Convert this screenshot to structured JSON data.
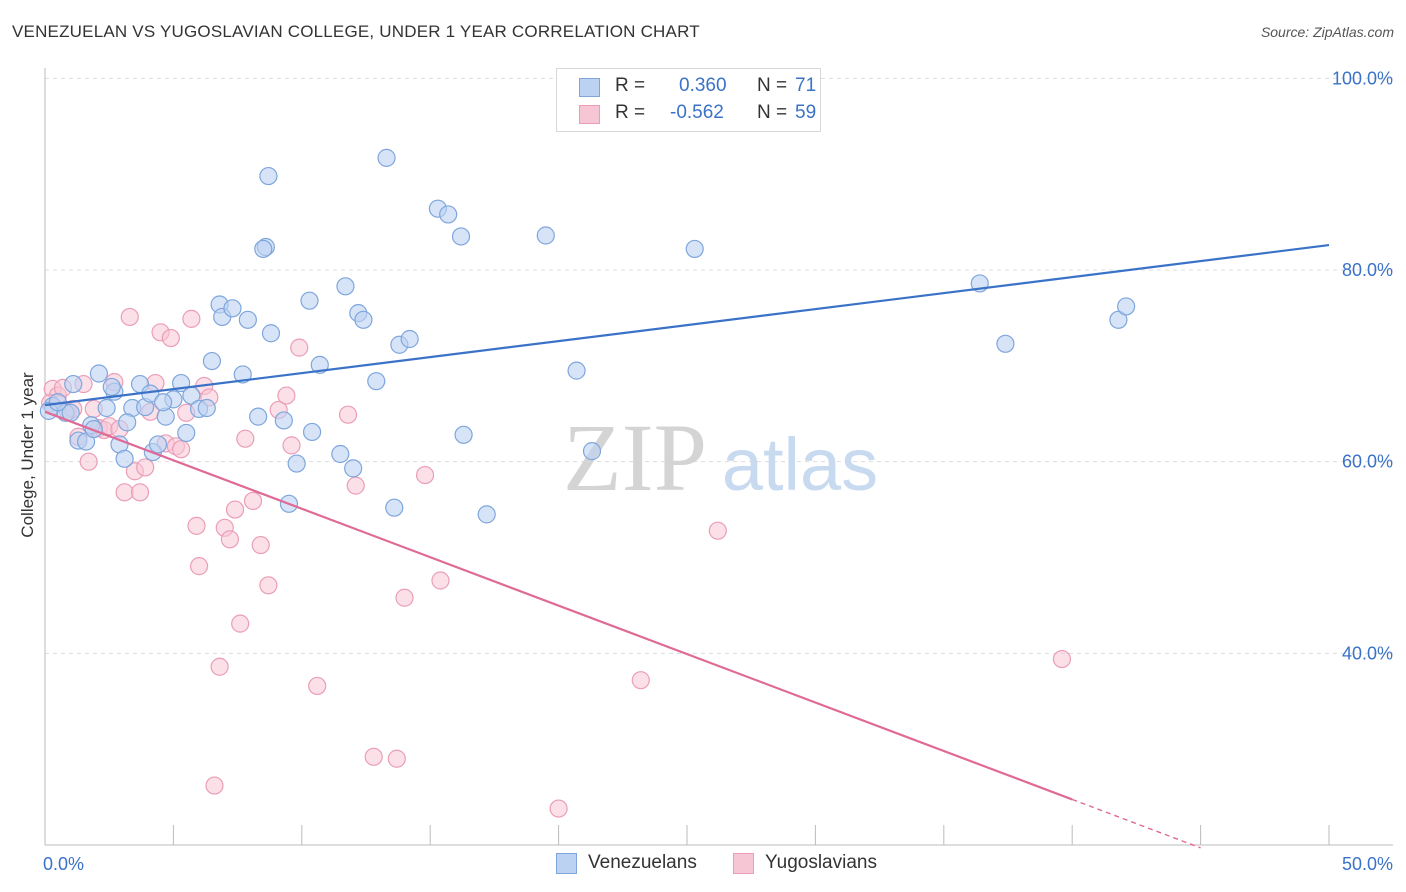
{
  "header": {
    "title": "VENEZUELAN VS YUGOSLAVIAN COLLEGE, UNDER 1 YEAR CORRELATION CHART",
    "source": "Source: ZipAtlas.com"
  },
  "legend": {
    "rows": [
      {
        "r_label": "R =",
        "r_value": "0.360",
        "n_label": "N =",
        "n_value": "71"
      },
      {
        "r_label": "R =",
        "r_value": "-0.562",
        "n_label": "N =",
        "n_value": "59"
      }
    ]
  },
  "watermark": {
    "zip": "ZIP",
    "atlas": "atlas"
  },
  "colors": {
    "blue": "#3a72c8",
    "blue_fill": "#bcd2f2",
    "blue_stroke": "#7ea6dc",
    "pink": "#e06a96",
    "pink_fill": "#f7c6d5",
    "pink_stroke": "#eb9db7",
    "grid": "#dddddd",
    "axis_label": "#3a72c8"
  },
  "chart_data": {
    "type": "scatter",
    "title": "VENEZUELAN VS YUGOSLAVIAN COLLEGE, UNDER 1 YEAR CORRELATION CHART",
    "xlabel": "",
    "ylabel": "College, Under 1 year",
    "xlim": [
      0,
      50
    ],
    "ylim": [
      20,
      104
    ],
    "x_tick_labels": [
      "0.0%",
      "50.0%"
    ],
    "y_ticks": [
      40,
      60,
      80,
      100
    ],
    "y_tick_labels": [
      "40.0%",
      "60.0%",
      "80.0%",
      "100.0%"
    ],
    "grid": true,
    "series": [
      {
        "name": "Venezuelans",
        "color": "#3a72c8",
        "R": 0.36,
        "N": 71,
        "trend": {
          "x": [
            0,
            50
          ],
          "y": [
            65.9,
            82.6
          ],
          "dash_from": null
        },
        "points": [
          [
            0.3,
            65.8
          ],
          [
            0.8,
            65.1
          ],
          [
            1.0,
            65.1
          ],
          [
            1.1,
            68.1
          ],
          [
            1.3,
            62.2
          ],
          [
            1.6,
            62.1
          ],
          [
            1.8,
            63.8
          ],
          [
            2.1,
            69.2
          ],
          [
            2.4,
            65.6
          ],
          [
            2.7,
            67.3
          ],
          [
            2.9,
            61.8
          ],
          [
            3.1,
            60.3
          ],
          [
            3.4,
            65.6
          ],
          [
            3.7,
            68.1
          ],
          [
            3.9,
            65.7
          ],
          [
            4.1,
            67.1
          ],
          [
            4.2,
            61.0
          ],
          [
            4.4,
            61.8
          ],
          [
            4.7,
            64.7
          ],
          [
            5.0,
            66.5
          ],
          [
            5.3,
            68.2
          ],
          [
            5.5,
            63.0
          ],
          [
            5.7,
            66.9
          ],
          [
            6.0,
            65.5
          ],
          [
            6.3,
            65.6
          ],
          [
            6.5,
            70.5
          ],
          [
            6.8,
            76.4
          ],
          [
            6.9,
            75.1
          ],
          [
            7.3,
            76.0
          ],
          [
            7.7,
            69.1
          ],
          [
            7.9,
            74.8
          ],
          [
            8.3,
            64.7
          ],
          [
            8.6,
            82.4
          ],
          [
            8.7,
            89.8
          ],
          [
            8.5,
            82.2
          ],
          [
            8.8,
            73.4
          ],
          [
            9.3,
            64.3
          ],
          [
            9.5,
            55.6
          ],
          [
            9.8,
            59.8
          ],
          [
            10.3,
            76.8
          ],
          [
            10.4,
            63.1
          ],
          [
            10.7,
            70.1
          ],
          [
            11.5,
            60.8
          ],
          [
            11.7,
            78.3
          ],
          [
            12.0,
            59.3
          ],
          [
            12.2,
            75.5
          ],
          [
            12.4,
            74.8
          ],
          [
            12.9,
            68.4
          ],
          [
            13.3,
            91.7
          ],
          [
            13.6,
            55.2
          ],
          [
            13.8,
            72.2
          ],
          [
            14.2,
            72.8
          ],
          [
            15.3,
            86.4
          ],
          [
            15.7,
            85.8
          ],
          [
            16.2,
            83.5
          ],
          [
            16.3,
            62.8
          ],
          [
            17.2,
            54.5
          ],
          [
            19.5,
            83.6
          ],
          [
            20.7,
            69.5
          ],
          [
            21.3,
            61.1
          ],
          [
            25.3,
            82.2
          ],
          [
            36.4,
            78.6
          ],
          [
            37.4,
            72.3
          ],
          [
            41.8,
            74.8
          ],
          [
            42.1,
            76.2
          ],
          [
            0.15,
            65.3
          ],
          [
            0.5,
            66.2
          ],
          [
            1.9,
            63.4
          ],
          [
            2.6,
            67.8
          ],
          [
            3.2,
            64.1
          ],
          [
            4.6,
            66.2
          ]
        ]
      },
      {
        "name": "Yugoslavians",
        "color": "#e06a96",
        "R": -0.562,
        "N": 59,
        "trend": {
          "x": [
            0,
            45
          ],
          "y": [
            65.2,
            19.7
          ],
          "dash_from": 40
        },
        "points": [
          [
            0.3,
            67.6
          ],
          [
            0.5,
            66.9
          ],
          [
            0.7,
            67.7
          ],
          [
            0.9,
            65.2
          ],
          [
            1.1,
            65.5
          ],
          [
            1.3,
            62.6
          ],
          [
            1.5,
            68.1
          ],
          [
            1.7,
            60.0
          ],
          [
            1.9,
            65.5
          ],
          [
            2.1,
            63.5
          ],
          [
            2.3,
            63.3
          ],
          [
            2.5,
            63.7
          ],
          [
            2.7,
            68.3
          ],
          [
            2.9,
            63.4
          ],
          [
            3.1,
            56.8
          ],
          [
            3.3,
            75.1
          ],
          [
            3.5,
            59.0
          ],
          [
            3.7,
            56.8
          ],
          [
            3.9,
            59.4
          ],
          [
            4.1,
            65.2
          ],
          [
            4.3,
            68.2
          ],
          [
            4.5,
            73.5
          ],
          [
            4.7,
            61.9
          ],
          [
            4.9,
            72.9
          ],
          [
            5.1,
            61.6
          ],
          [
            5.3,
            61.3
          ],
          [
            5.5,
            65.1
          ],
          [
            5.7,
            74.9
          ],
          [
            5.9,
            53.3
          ],
          [
            6.0,
            49.1
          ],
          [
            6.2,
            67.9
          ],
          [
            6.4,
            66.7
          ],
          [
            6.6,
            26.2
          ],
          [
            6.8,
            38.6
          ],
          [
            7.0,
            53.1
          ],
          [
            7.2,
            51.9
          ],
          [
            7.4,
            55.0
          ],
          [
            7.6,
            43.1
          ],
          [
            7.8,
            62.4
          ],
          [
            8.1,
            55.9
          ],
          [
            8.4,
            51.3
          ],
          [
            8.7,
            47.1
          ],
          [
            9.1,
            65.4
          ],
          [
            9.4,
            66.9
          ],
          [
            9.6,
            61.7
          ],
          [
            9.9,
            71.9
          ],
          [
            10.6,
            36.6
          ],
          [
            11.8,
            64.9
          ],
          [
            12.1,
            57.5
          ],
          [
            12.8,
            29.2
          ],
          [
            13.7,
            29.0
          ],
          [
            14.0,
            45.8
          ],
          [
            14.8,
            58.6
          ],
          [
            15.4,
            47.6
          ],
          [
            20.0,
            23.8
          ],
          [
            23.2,
            37.2
          ],
          [
            26.2,
            52.8
          ],
          [
            39.6,
            39.4
          ],
          [
            0.2,
            66.1
          ]
        ]
      }
    ]
  },
  "bottom_legend": [
    {
      "label": "Venezuelans"
    },
    {
      "label": "Yugoslavians"
    }
  ]
}
